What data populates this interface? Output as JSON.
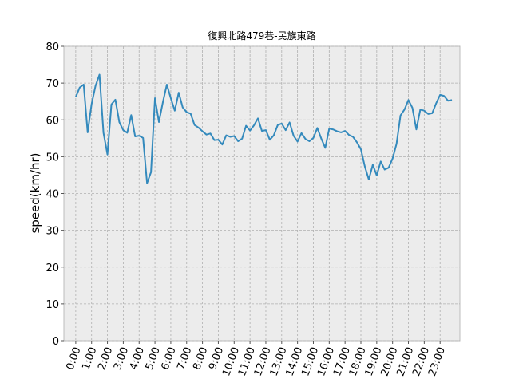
{
  "chart_data": {
    "type": "line",
    "title": "復興北路479巷-民族東路",
    "xlabel": "",
    "ylabel": "speed(km/hr)",
    "ylim": [
      0,
      80
    ],
    "yticks": [
      0,
      10,
      20,
      30,
      40,
      50,
      60,
      70,
      80
    ],
    "xlim": [
      -0.75,
      24.25
    ],
    "xtick_labels": [
      "0:00",
      "1:00",
      "2:00",
      "3:00",
      "4:00",
      "5:00",
      "6:00",
      "7:00",
      "8:00",
      "9:00",
      "10:00",
      "11:00",
      "12:00",
      "13:00",
      "14:00",
      "15:00",
      "16:00",
      "17:00",
      "18:00",
      "19:00",
      "20:00",
      "21:00",
      "22:00",
      "23:00"
    ],
    "grid": true,
    "background": "#ececec",
    "series": [
      {
        "color": "#348abd",
        "x": [
          0,
          0.25,
          0.5,
          0.75,
          1,
          1.25,
          1.5,
          1.75,
          2,
          2.25,
          2.5,
          2.75,
          3,
          3.25,
          3.5,
          3.75,
          4,
          4.25,
          4.5,
          4.75,
          5,
          5.25,
          5.5,
          5.75,
          6,
          6.25,
          6.5,
          6.75,
          7,
          7.25,
          7.5,
          7.75,
          8,
          8.25,
          8.5,
          8.75,
          9,
          9.25,
          9.5,
          9.75,
          10,
          10.25,
          10.5,
          10.75,
          11,
          11.25,
          11.5,
          11.75,
          12,
          12.25,
          12.5,
          12.75,
          13,
          13.25,
          13.5,
          13.75,
          14,
          14.25,
          14.5,
          14.75,
          15,
          15.25,
          15.5,
          15.75,
          16,
          16.25,
          16.5,
          16.75,
          17,
          17.25,
          17.5,
          17.75,
          18,
          18.25,
          18.5,
          18.75,
          19,
          19.25,
          19.5,
          19.75,
          20,
          20.25,
          20.5,
          20.75,
          21,
          21.25,
          21.5,
          21.75,
          22,
          22.25,
          22.5,
          22.75,
          23,
          23.25,
          23.5,
          23.75
        ],
        "y": [
          66.2,
          68.8,
          69.6,
          56.6,
          64.3,
          69.3,
          72.3,
          56.5,
          50.6,
          64.2,
          65.5,
          59.4,
          57.2,
          56.5,
          61.3,
          55.5,
          55.7,
          55.1,
          42.8,
          45.8,
          65.9,
          59.4,
          64.8,
          69.6,
          65.9,
          62.5,
          67.4,
          63.4,
          62.1,
          61.7,
          58.6,
          57.9,
          56.9,
          56,
          56.3,
          54.5,
          54.6,
          53.3,
          55.8,
          55.4,
          55.6,
          54.2,
          54.9,
          58.4,
          57.1,
          58.5,
          60.4,
          57,
          57.2,
          54.6,
          55.8,
          58.6,
          59,
          57.2,
          59.3,
          55.7,
          54.1,
          56.4,
          54.8,
          54.2,
          55.1,
          57.8,
          54.9,
          52.4,
          57.6,
          57.4,
          56.9,
          56.6,
          57,
          55.9,
          55.4,
          53.9,
          52,
          47.3,
          43.8,
          47.8,
          44.9,
          48.7,
          46.5,
          47,
          49.5,
          53.5,
          61.2,
          62.8,
          65.4,
          63.3,
          57.4,
          62.8,
          62.5,
          61.6,
          61.8,
          64.5,
          66.8,
          66.5,
          65.2,
          65.4
        ]
      }
    ]
  }
}
